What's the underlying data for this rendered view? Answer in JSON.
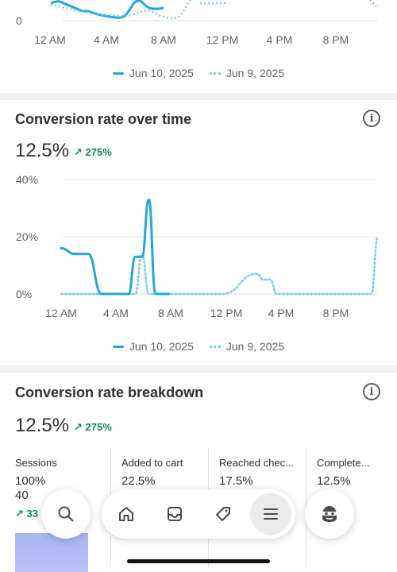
{
  "top_chart": {
    "y_tick_bottom": "0",
    "x_ticks": [
      "12 AM",
      "4 AM",
      "8 AM",
      "12 PM",
      "4 PM",
      "8 PM"
    ]
  },
  "legend": {
    "current": "Jun 10, 2025",
    "previous": "Jun 9, 2025"
  },
  "conversion": {
    "title": "Conversion rate over time",
    "value": "12.5%",
    "delta": "↗ 275%",
    "y_ticks": [
      "40%",
      "20%",
      "0%"
    ],
    "x_ticks": [
      "12 AM",
      "4 AM",
      "8 AM",
      "12 PM",
      "4 PM",
      "8 PM"
    ]
  },
  "chart_data": {
    "type": "line",
    "x": [
      0,
      1,
      2,
      3,
      4,
      5,
      5.5,
      6,
      6.5,
      7,
      7.5,
      8,
      12,
      14.5,
      15,
      15.5,
      16,
      20,
      23,
      23.5
    ],
    "ylim": [
      0,
      40
    ],
    "ylabel": "",
    "xlabel": "",
    "series": [
      {
        "name": "Jun 10, 2025",
        "values": [
          16,
          14,
          14,
          0,
          0,
          0,
          13,
          13,
          33,
          0,
          0,
          0,
          null,
          null,
          null,
          null,
          null,
          null,
          null,
          null
        ]
      },
      {
        "name": "Jun 9, 2025",
        "values": [
          0,
          0,
          0,
          0,
          0,
          0,
          0,
          14,
          0,
          0,
          0,
          0,
          0,
          7,
          5,
          5,
          0,
          0,
          0,
          20
        ]
      }
    ]
  },
  "breakdown": {
    "title": "Conversion rate breakdown",
    "value": "12.5%",
    "delta": "↗ 275%",
    "stages": [
      {
        "label": "Sessions",
        "value": "100%",
        "count": "40",
        "change": "↗ 33"
      },
      {
        "label": "Added to cart",
        "value": "22.5%"
      },
      {
        "label": "Reached chec...",
        "value": "17.5%"
      },
      {
        "label": "Complete...",
        "value": "12.5%"
      }
    ]
  },
  "nav": {
    "items": [
      "search-icon",
      "home-icon",
      "inbox-icon",
      "tag-icon",
      "menu-icon",
      "avatar-icon"
    ]
  }
}
